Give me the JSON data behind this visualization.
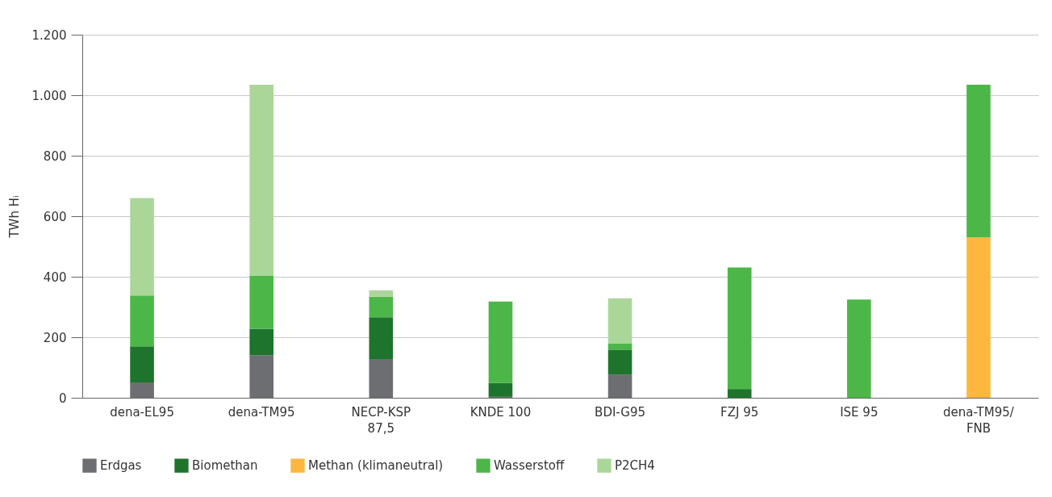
{
  "chart_data": {
    "type": "bar",
    "stacked": true,
    "ylabel": "TWh Hᵢ",
    "categories": [
      "dena-EL95",
      "dena-TM95",
      "NECP-KSP\n87,5",
      "KNDE 100",
      "BDI-G95",
      "FZJ 95",
      "ISE 95",
      "dena-TM95/\nFNB"
    ],
    "series": [
      {
        "name": "Erdgas",
        "color": "#6d6e71",
        "values": [
          51,
          141,
          128,
          3,
          77,
          null,
          null,
          null
        ]
      },
      {
        "name": "Biomethan",
        "color": "#1e742c",
        "values": [
          119,
          87,
          138,
          46,
          82,
          29,
          null,
          null
        ]
      },
      {
        "name": "Methan (klimaneutral)",
        "color": "#fdb73e",
        "values": [
          null,
          null,
          null,
          null,
          null,
          null,
          null,
          530
        ]
      },
      {
        "name": "Wasserstoff",
        "color": "#4cb748",
        "values": [
          168,
          175,
          68,
          269,
          21,
          402,
          325,
          505
        ]
      },
      {
        "name": "P2CH4",
        "color": "#abd69a",
        "values": [
          322,
          632,
          21,
          null,
          149,
          null,
          null,
          null
        ]
      }
    ],
    "ylim": [
      0,
      1200
    ],
    "yticks": [
      0,
      200,
      400,
      600,
      800,
      {
        "value": 1000,
        "label": "1.000"
      },
      {
        "value": 1200,
        "label": "1.200"
      }
    ],
    "grid": "y",
    "legend": "bottom"
  }
}
